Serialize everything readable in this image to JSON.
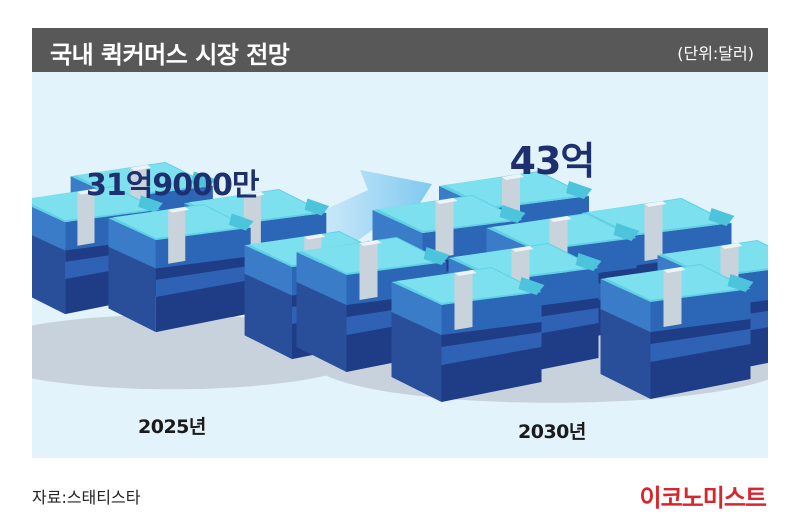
{
  "header": {
    "title": "국내 퀵커머스 시장 전망",
    "unit": "(단위:달러)"
  },
  "chart_data": {
    "type": "bar",
    "title": "국내 퀵커머스 시장 전망",
    "unit": "(단위:달러)",
    "categories": [
      "2025년",
      "2030년"
    ],
    "values": [
      3190000000,
      4300000000
    ],
    "value_labels": [
      "31억9000만",
      "43억"
    ]
  },
  "footer": {
    "source": "자료:스태티스타",
    "brand": "이코노미스트"
  },
  "colors": {
    "header_bg": "#585858",
    "panel_bg": "#e2f3fb",
    "value_text": "#1d2f6e",
    "brand": "#d7262d"
  }
}
